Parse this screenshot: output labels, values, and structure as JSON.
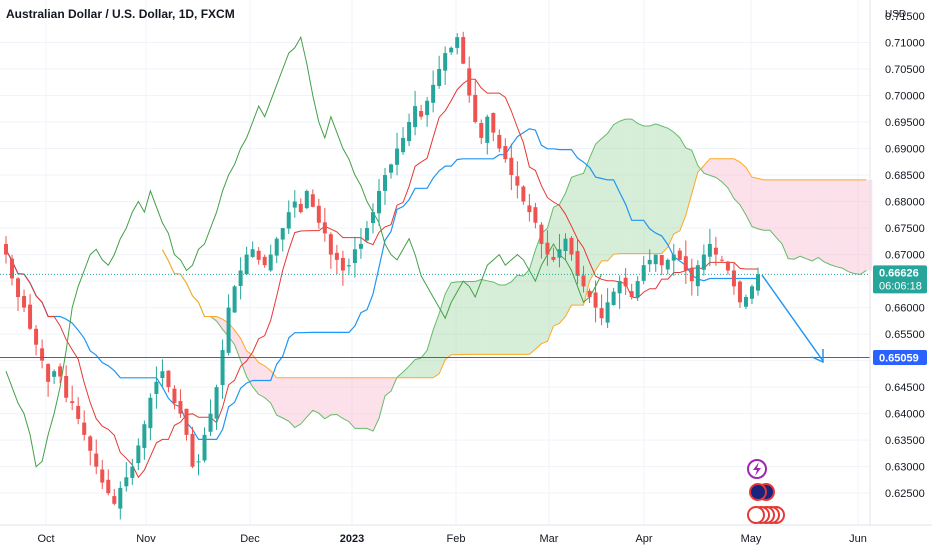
{
  "chart_data": {
    "type": "candlestick",
    "title": "Australian Dollar / U.S. Dollar, 1D, FXCM",
    "currency_label": "USD",
    "y_axis": {
      "ticks": [
        "0.71000",
        "0.70500",
        "0.70000",
        "0.69500",
        "0.69000",
        "0.68500",
        "0.68000",
        "0.67500",
        "0.67000",
        "0.66500",
        "0.66000",
        "0.65500",
        "0.65000",
        "0.64500",
        "0.64000",
        "0.63500",
        "0.63000",
        "0.62500"
      ],
      "partial_top_tick": "0.71500",
      "ylim": [
        0.619,
        0.7165
      ]
    },
    "x_axis": {
      "labels": [
        {
          "text": "Oct",
          "bold": false
        },
        {
          "text": "Nov",
          "bold": false
        },
        {
          "text": "Dec",
          "bold": false
        },
        {
          "text": "2023",
          "bold": true
        },
        {
          "text": "Feb",
          "bold": false
        },
        {
          "text": "Mar",
          "bold": false
        },
        {
          "text": "Apr",
          "bold": false
        },
        {
          "text": "May",
          "bold": false
        },
        {
          "text": "Jun",
          "bold": false
        }
      ]
    },
    "current_price": {
      "value": "0.66626",
      "countdown": "06:06:18",
      "color": "#26a69a"
    },
    "support_level": {
      "value": "0.65059",
      "color": "#2962ff"
    },
    "colors": {
      "up": "#26a69a",
      "down": "#ef5350",
      "tenkan": "#e53935",
      "kijun": "#2196f3",
      "chikou": "#43a047",
      "span_a": "#66bb6a",
      "span_b": "#ffa726",
      "cloud_bull": "#a5d6a7",
      "cloud_bear": "#f8bbd0",
      "arrow": "#2196f3"
    },
    "candles_anchor_close": [
      0.67,
      0.6655,
      0.662,
      0.66,
      0.656,
      0.653,
      0.65,
      0.646,
      0.648,
      0.647,
      0.643,
      0.642,
      0.639,
      0.636,
      0.633,
      0.63,
      0.627,
      0.625,
      0.623,
      0.626,
      0.628,
      0.63,
      0.634,
      0.638,
      0.643,
      0.646,
      0.648,
      0.645,
      0.642,
      0.64,
      0.636,
      0.63,
      0.631,
      0.636,
      0.64,
      0.645,
      0.652,
      0.66,
      0.664,
      0.667,
      0.67,
      0.671,
      0.669,
      0.668,
      0.67,
      0.673,
      0.675,
      0.678,
      0.68,
      0.678,
      0.682,
      0.679,
      0.676,
      0.674,
      0.67,
      0.669,
      0.667,
      0.668,
      0.671,
      0.672,
      0.675,
      0.678,
      0.682,
      0.685,
      0.687,
      0.69,
      0.692,
      0.695,
      0.698,
      0.696,
      0.699,
      0.702,
      0.705,
      0.708,
      0.709,
      0.711,
      0.706,
      0.7,
      0.695,
      0.692,
      0.696,
      0.693,
      0.69,
      0.688,
      0.685,
      0.683,
      0.68,
      0.678,
      0.676,
      0.672,
      0.67,
      0.669,
      0.671,
      0.673,
      0.67,
      0.666,
      0.664,
      0.662,
      0.66,
      0.658,
      0.661,
      0.663,
      0.665,
      0.664,
      0.662,
      0.665,
      0.668,
      0.669,
      0.67,
      0.668,
      0.669,
      0.67,
      0.669,
      0.667,
      0.665,
      0.668,
      0.67,
      0.672,
      0.67,
      0.669,
      0.667,
      0.664,
      0.661,
      0.662,
      0.664,
      0.6663
    ]
  }
}
